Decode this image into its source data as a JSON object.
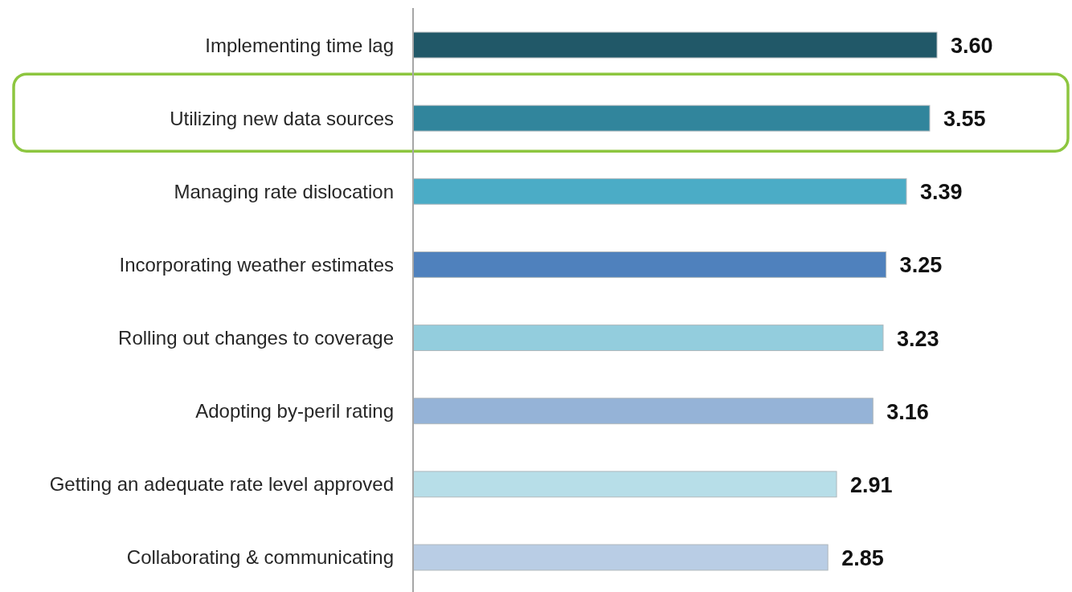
{
  "chart_data": {
    "type": "bar",
    "orientation": "horizontal",
    "categories": [
      "Implementing time lag",
      "Utilizing new data sources",
      "Managing rate dislocation",
      "Incorporating weather estimates",
      "Rolling out changes to coverage",
      "Adopting by-peril rating",
      "Getting an adequate rate level approved",
      "Collaborating & communicating"
    ],
    "values": [
      3.6,
      3.55,
      3.39,
      3.25,
      3.23,
      3.16,
      2.91,
      2.85
    ],
    "colors": [
      "#215868",
      "#31859c",
      "#4bacc6",
      "#4f81bd",
      "#93cddd",
      "#95b3d7",
      "#b7dee8",
      "#b9cde5"
    ],
    "value_labels": [
      "3.60",
      "3.55",
      "3.39",
      "3.25",
      "3.23",
      "3.16",
      "2.91",
      "2.85"
    ]
  }
}
